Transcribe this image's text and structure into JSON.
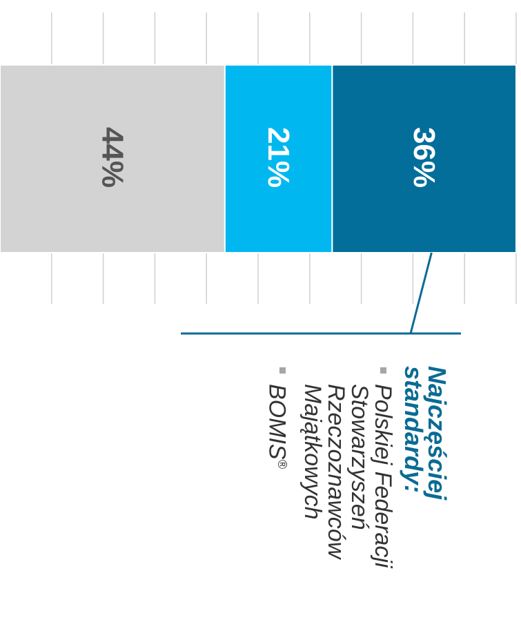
{
  "chart_data": {
    "type": "bar",
    "orientation": "stacked-100",
    "categories": [
      ""
    ],
    "series": [
      {
        "values": [
          44
        ],
        "color": "#d3d3d3",
        "label": "44%"
      },
      {
        "values": [
          21
        ],
        "color": "#00b8ef",
        "label": "21%"
      },
      {
        "values": [
          36
        ],
        "color": "#036e9a",
        "label": "36%"
      }
    ],
    "grid": true
  },
  "annotation": {
    "title": "Najczęściej standardy:",
    "items": [
      {
        "text": "Polskiej Federacji Stowarzyszeń Rzeczoznawców Majątkowych"
      },
      {
        "text": "BOMIS",
        "sup": "®"
      }
    ],
    "colors": {
      "title": "#0a6b94",
      "bracket": "#0a6b94",
      "bullet": "#a6a6a6"
    }
  }
}
